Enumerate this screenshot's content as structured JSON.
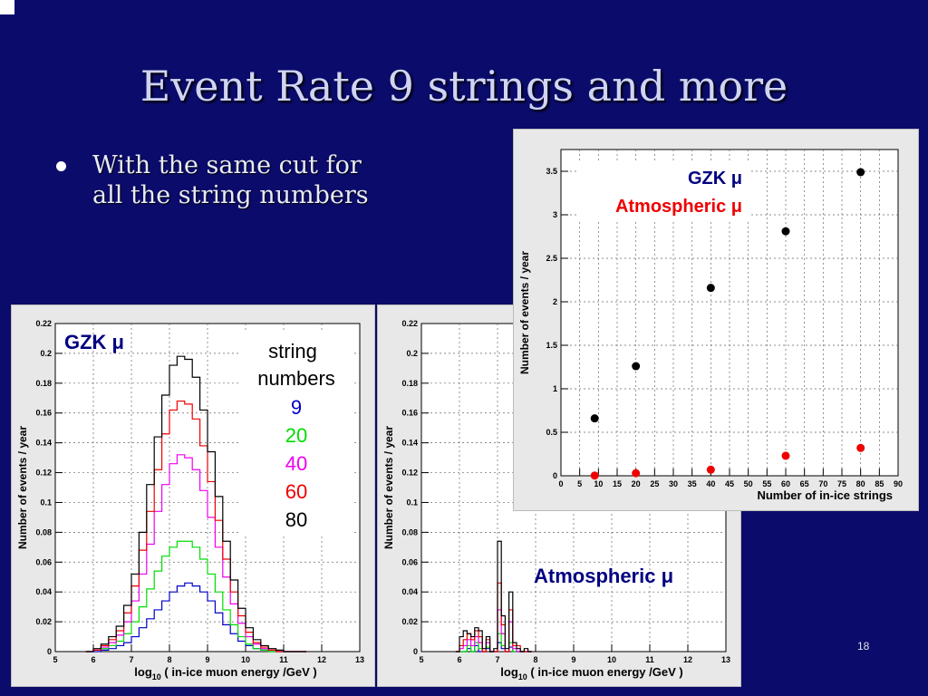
{
  "slide": {
    "title": "Event Rate 9 strings and more",
    "bullet": [
      "With the same cut for",
      "all the string numbers"
    ],
    "page_number": "18"
  },
  "chart_data": [
    {
      "type": "line",
      "subtype": "histogram",
      "annotation": "GZK  μ",
      "xlabel_parts": [
        "log",
        "10",
        " ( in-ice muon energy /GeV )"
      ],
      "ylabel": "Number of events / year",
      "xlim": [
        5,
        13
      ],
      "ylim": [
        0,
        0.22
      ],
      "xticks": [
        5,
        6,
        7,
        8,
        9,
        10,
        11,
        12,
        13
      ],
      "yticks": [
        0,
        0.02,
        0.04,
        0.06,
        0.08,
        0.1,
        0.12,
        0.14,
        0.16,
        0.18,
        0.2,
        0.22
      ],
      "grid": true,
      "legend_title": [
        "string",
        "numbers"
      ],
      "x": [
        5.8,
        6.0,
        6.2,
        6.4,
        6.6,
        6.8,
        7.0,
        7.2,
        7.4,
        7.6,
        7.8,
        8.0,
        8.2,
        8.4,
        8.6,
        8.8,
        9.0,
        9.2,
        9.4,
        9.6,
        9.8,
        10.0,
        10.2,
        10.4,
        10.6,
        10.8,
        11.0,
        11.2,
        11.4
      ],
      "series": [
        {
          "name": "9",
          "color": "#0000cc",
          "values": [
            0,
            0,
            0.001,
            0.002,
            0.004,
            0.006,
            0.01,
            0.016,
            0.022,
            0.028,
            0.034,
            0.04,
            0.044,
            0.046,
            0.044,
            0.04,
            0.034,
            0.026,
            0.018,
            0.012,
            0.007,
            0.004,
            0.002,
            0.001,
            0,
            0,
            0,
            0,
            0
          ]
        },
        {
          "name": "20",
          "color": "#00dd00",
          "values": [
            0,
            0.001,
            0.002,
            0.004,
            0.007,
            0.012,
            0.02,
            0.03,
            0.042,
            0.054,
            0.064,
            0.07,
            0.074,
            0.074,
            0.07,
            0.062,
            0.052,
            0.04,
            0.028,
            0.018,
            0.01,
            0.005,
            0.002,
            0.001,
            0,
            0,
            0,
            0,
            0
          ]
        },
        {
          "name": "40",
          "color": "#ee00ee",
          "values": [
            0,
            0.001,
            0.003,
            0.006,
            0.011,
            0.02,
            0.034,
            0.052,
            0.072,
            0.094,
            0.112,
            0.126,
            0.132,
            0.13,
            0.122,
            0.108,
            0.09,
            0.07,
            0.05,
            0.032,
            0.019,
            0.01,
            0.005,
            0.002,
            0.001,
            0,
            0,
            0,
            0
          ]
        },
        {
          "name": "60",
          "color": "#ee0000",
          "values": [
            0,
            0.001,
            0.004,
            0.008,
            0.014,
            0.026,
            0.044,
            0.068,
            0.094,
            0.122,
            0.146,
            0.162,
            0.168,
            0.166,
            0.156,
            0.138,
            0.114,
            0.088,
            0.062,
            0.04,
            0.024,
            0.013,
            0.006,
            0.003,
            0.001,
            0,
            0,
            0,
            0
          ]
        },
        {
          "name": "80",
          "color": "#000000",
          "values": [
            0,
            0.002,
            0.005,
            0.01,
            0.017,
            0.031,
            0.052,
            0.08,
            0.112,
            0.144,
            0.172,
            0.192,
            0.198,
            0.196,
            0.184,
            0.162,
            0.134,
            0.104,
            0.074,
            0.048,
            0.029,
            0.016,
            0.008,
            0.004,
            0.002,
            0.001,
            0,
            0,
            0
          ]
        }
      ]
    },
    {
      "type": "line",
      "subtype": "histogram",
      "annotation": "Atmospheric  μ",
      "xlabel_parts": [
        "log",
        "10",
        " ( in-ice muon energy /GeV )"
      ],
      "ylabel": "Number of events / year",
      "xlim": [
        5,
        13
      ],
      "ylim": [
        0,
        0.22
      ],
      "xticks": [
        5,
        6,
        7,
        8,
        9,
        10,
        11,
        12,
        13
      ],
      "yticks": [
        0,
        0.02,
        0.04,
        0.06,
        0.08,
        0.1,
        0.12,
        0.14,
        0.16,
        0.18,
        0.2,
        0.22
      ],
      "grid": true,
      "x": [
        5.9,
        6.0,
        6.1,
        6.2,
        6.3,
        6.4,
        6.5,
        6.6,
        6.7,
        6.8,
        6.9,
        7.0,
        7.1,
        7.2,
        7.3,
        7.4,
        7.5,
        7.6,
        7.7,
        7.8
      ],
      "series": [
        {
          "name": "9",
          "color": "#0000cc",
          "values": [
            0,
            0,
            0,
            0.002,
            0,
            0.004,
            0,
            0,
            0.002,
            0,
            0,
            0.006,
            0.002,
            0,
            0.003,
            0,
            0,
            0,
            0,
            0
          ]
        },
        {
          "name": "20",
          "color": "#00dd00",
          "values": [
            0,
            0,
            0,
            0.004,
            0,
            0.006,
            0.002,
            0,
            0.003,
            0,
            0,
            0.012,
            0.004,
            0,
            0.006,
            0,
            0,
            0,
            0,
            0
          ]
        },
        {
          "name": "40",
          "color": "#ee00ee",
          "values": [
            0,
            0.002,
            0.004,
            0.008,
            0.004,
            0.01,
            0.006,
            0,
            0.006,
            0,
            0,
            0.028,
            0.012,
            0,
            0.02,
            0.002,
            0,
            0,
            0,
            0
          ]
        },
        {
          "name": "60",
          "color": "#ee0000",
          "values": [
            0,
            0.004,
            0.008,
            0.012,
            0.008,
            0.014,
            0.01,
            0,
            0.008,
            0,
            0,
            0.046,
            0.018,
            0,
            0.028,
            0.004,
            0.004,
            0,
            0,
            0
          ]
        },
        {
          "name": "80",
          "color": "#000000",
          "values": [
            0,
            0.01,
            0.014,
            0.012,
            0.01,
            0.016,
            0.014,
            0.002,
            0.01,
            0,
            0.002,
            0.074,
            0.024,
            0.002,
            0.04,
            0.006,
            0.002,
            0,
            0.002,
            0
          ]
        }
      ]
    },
    {
      "type": "scatter",
      "xlabel": "Number of in-ice strings",
      "ylabel": "Number of events / year",
      "xlim": [
        0,
        90
      ],
      "ylim": [
        0,
        3.75
      ],
      "xticks": [
        0,
        5,
        10,
        15,
        20,
        25,
        30,
        35,
        40,
        45,
        50,
        55,
        60,
        65,
        70,
        75,
        80,
        85,
        90
      ],
      "yticks": [
        0,
        0.5,
        1,
        1.5,
        2,
        2.5,
        3,
        3.5
      ],
      "grid": true,
      "series": [
        {
          "name": "GZK  μ",
          "color": "#000000",
          "x": [
            9,
            20,
            40,
            60,
            80
          ],
          "y": [
            0.66,
            1.26,
            2.16,
            2.81,
            3.49
          ]
        },
        {
          "name": "Atmospheric  μ",
          "color": "#ee0000",
          "x": [
            9,
            20,
            40,
            60,
            80
          ],
          "y": [
            0.003,
            0.03,
            0.07,
            0.23,
            0.32
          ]
        }
      ]
    }
  ]
}
